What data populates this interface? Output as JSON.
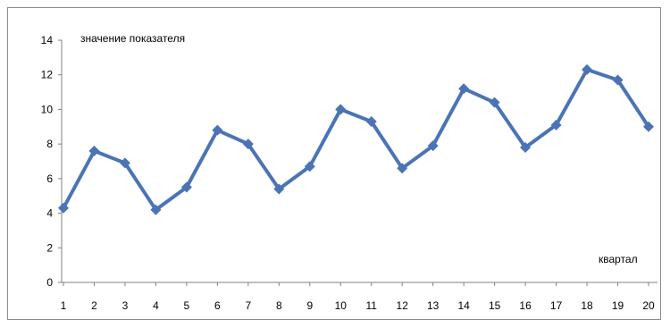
{
  "chart_data": {
    "type": "line",
    "ylabel": "значение показателя",
    "xlabel": "квартал",
    "ylim": [
      0,
      14
    ],
    "y_ticks": [
      0,
      2,
      4,
      6,
      8,
      10,
      12,
      14
    ],
    "x": [
      1,
      2,
      3,
      4,
      5,
      6,
      7,
      8,
      9,
      10,
      11,
      12,
      13,
      14,
      15,
      16,
      17,
      18,
      19,
      20
    ],
    "series": [
      {
        "values": [
          4.3,
          7.6,
          6.9,
          4.2,
          5.5,
          8.8,
          8.0,
          5.4,
          6.7,
          10.0,
          9.3,
          6.6,
          7.9,
          11.2,
          10.4,
          7.8,
          9.1,
          12.3,
          11.7,
          9.0
        ],
        "color": "#4a74b5"
      }
    ],
    "grid": false,
    "legend": "none"
  }
}
